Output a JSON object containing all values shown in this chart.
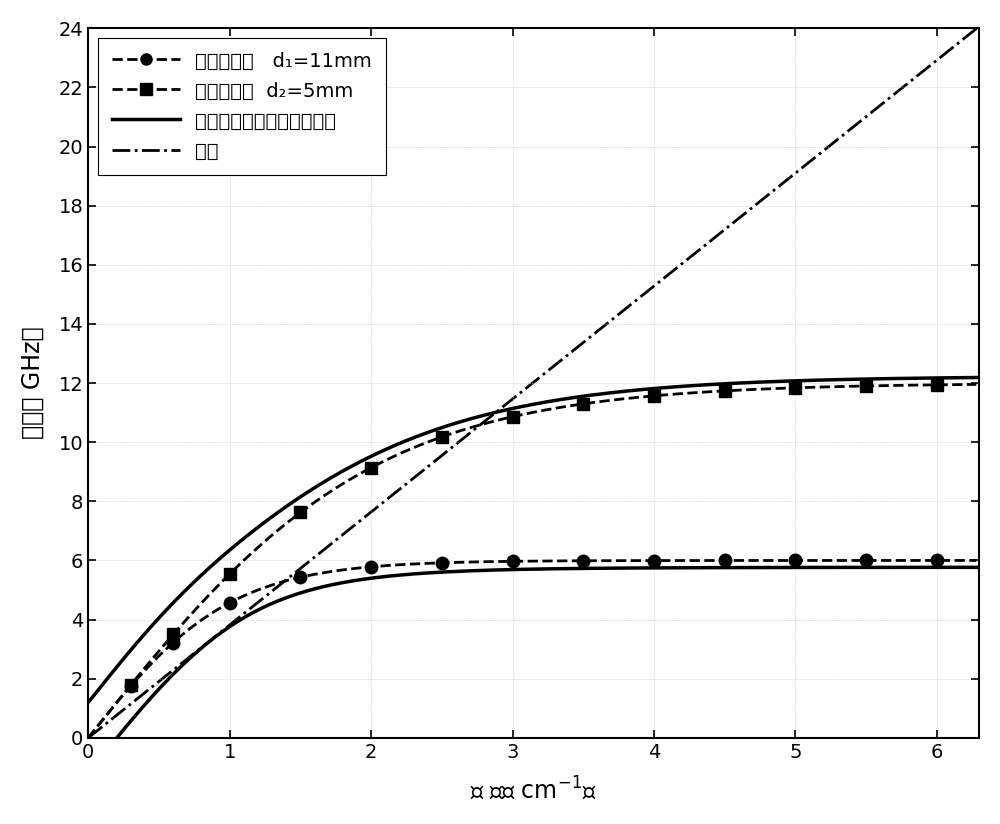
{
  "xlabel_cn": "波 数（ cm",
  "ylabel_cn": "频率（ GHz）",
  "xlim": [
    0,
    6.3
  ],
  "ylim": [
    0,
    24
  ],
  "xticks": [
    0,
    1,
    2,
    3,
    4,
    5,
    6
  ],
  "yticks": [
    0,
    2,
    4,
    6,
    8,
    10,
    12,
    14,
    16,
    18,
    20,
    22,
    24
  ],
  "legend1": "单周期结构   d₁=11mm",
  "legend2": "单周期结构  d₂=5mm",
  "legend3": "复合周期结构中的混合模式",
  "legend4": "光线",
  "d1_asymptote": 6.0,
  "d1_a": 1.0,
  "d2_asymptote": 12.0,
  "d2_a": 0.5,
  "coupling_V": 1.2,
  "light_line_slope": 3.82,
  "background_color": "#ffffff",
  "font_size_label": 17,
  "font_size_tick": 14,
  "font_size_legend": 14,
  "figsize": [
    10.0,
    8.24
  ],
  "dpi": 100,
  "d1_markers_x": [
    0.3,
    0.6,
    1.0,
    1.5,
    2.0,
    2.5,
    3.0,
    3.5,
    4.0,
    4.5,
    5.0,
    5.5,
    6.0
  ],
  "d2_markers_x": [
    0.3,
    0.6,
    1.0,
    1.5,
    2.0,
    2.5,
    3.0,
    3.5,
    4.0,
    4.5,
    5.0,
    5.5,
    6.0
  ]
}
